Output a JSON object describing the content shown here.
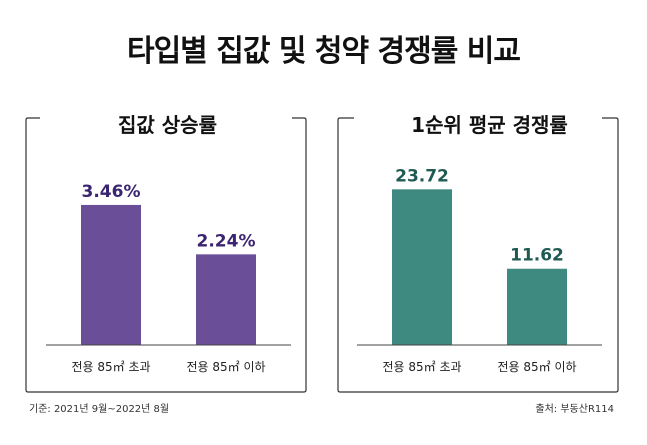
{
  "title": "타입별 집값 및 청약 경쟁률 비교",
  "footnote_left": "기준: 2021년 9월~2022년 8월",
  "footnote_right": "출처: 부동산R114",
  "chart_data": [
    {
      "type": "bar",
      "title": "집값 상승률",
      "categories": [
        "전용 85㎡ 초과",
        "전용 85㎡ 이하"
      ],
      "values": [
        3.46,
        2.24
      ],
      "value_labels": [
        "3.46%",
        "2.24%"
      ],
      "unit": "%",
      "ylim": [
        0,
        4.2
      ],
      "bar_color": "#6a4f98",
      "label_color": "#3b2570"
    },
    {
      "type": "bar",
      "title": "1순위 평균 경쟁률",
      "categories": [
        "전용 85㎡ 초과",
        "전용 85㎡ 이하"
      ],
      "values": [
        23.72,
        11.62
      ],
      "value_labels": [
        "23.72",
        "11.62"
      ],
      "ylim": [
        0,
        25.9
      ],
      "bar_color": "#3f8a80",
      "label_color": "#1f5a53"
    }
  ]
}
